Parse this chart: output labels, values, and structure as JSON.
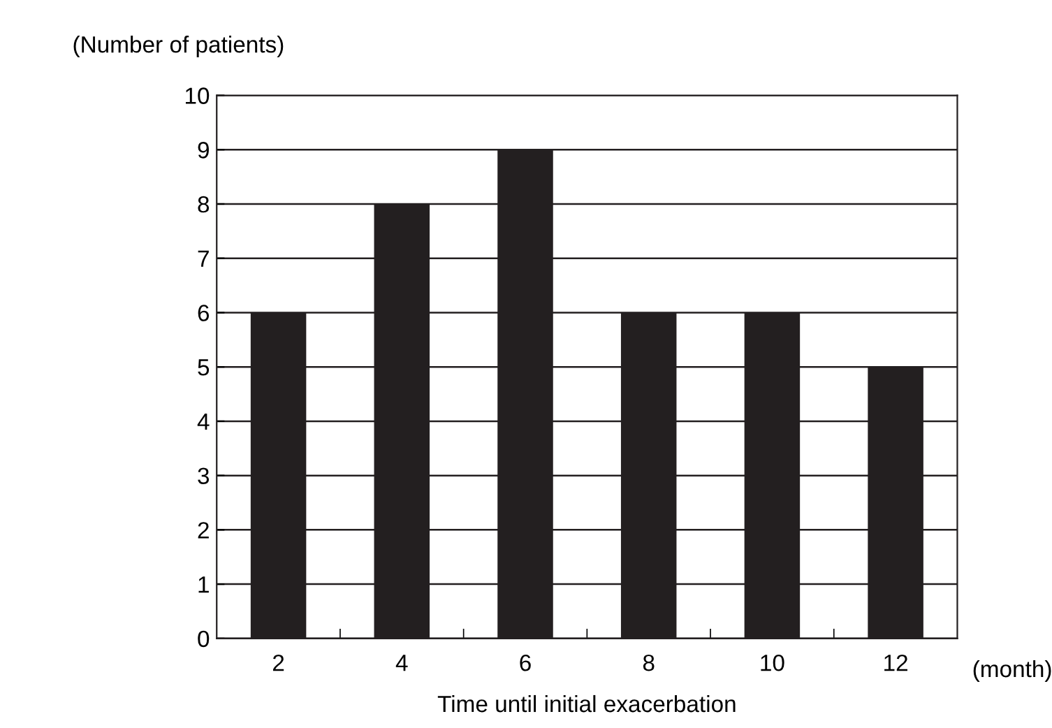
{
  "chart_data": {
    "type": "bar",
    "ylabel": "(Number of patients)",
    "xlabel": "Time until initial exacerbation",
    "annotations": [
      "(month)"
    ],
    "categories": [
      "2",
      "4",
      "6",
      "8",
      "10",
      "12"
    ],
    "values": [
      6,
      8,
      9,
      6,
      6,
      5
    ],
    "color": "#231f20",
    "ylim": [
      0,
      10
    ],
    "yticks": [
      0,
      1,
      2,
      3,
      4,
      5,
      6,
      7,
      8,
      9,
      10
    ],
    "grid": "y",
    "legend": false
  }
}
